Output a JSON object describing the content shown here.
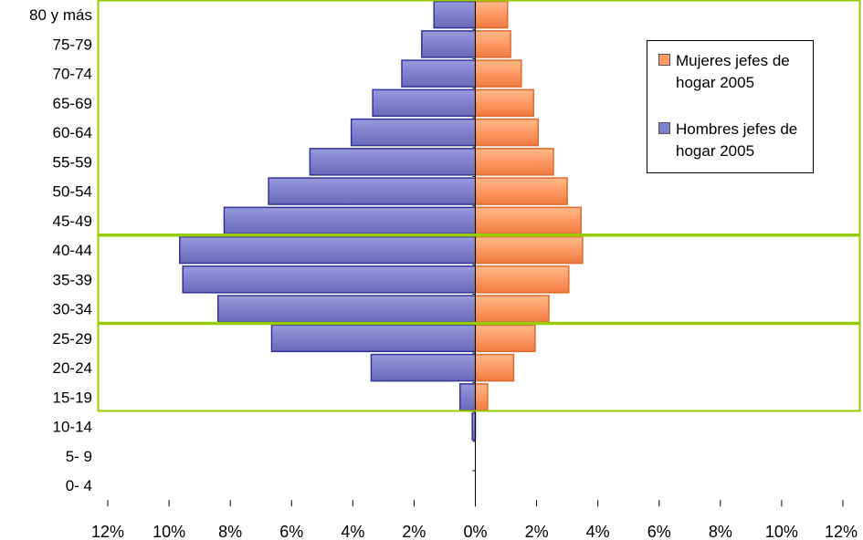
{
  "chart_data": {
    "type": "bar",
    "orientation": "horizontal",
    "categories": [
      "80 y más",
      "75-79",
      "70-74",
      "65-69",
      "60-64",
      "55-59",
      "50-54",
      "45-49",
      "40-44",
      "35-39",
      "30-34",
      "25-29",
      "20-24",
      "15-19",
      "10-14",
      "5- 9",
      "0- 4"
    ],
    "series": [
      {
        "name": "Mujeres jefes de hogar 2005",
        "color": "#ff9966",
        "values": [
          1.05,
          1.15,
          1.5,
          1.9,
          2.05,
          2.55,
          3.0,
          3.45,
          3.5,
          3.05,
          2.4,
          1.95,
          1.25,
          0.4,
          0.0,
          0.0,
          0.0
        ]
      },
      {
        "name": "Hombres jefes de hogar 2005",
        "color": "#8080cc",
        "values": [
          -1.35,
          -1.75,
          -2.4,
          -3.35,
          -4.05,
          -5.4,
          -6.75,
          -8.2,
          -9.65,
          -9.55,
          -8.4,
          -6.65,
          -3.4,
          -0.5,
          -0.1,
          0.0,
          0.0
        ]
      }
    ],
    "xlim": [
      -12,
      12
    ],
    "x_ticks": [
      -12,
      -10,
      -8,
      -6,
      -4,
      -2,
      0,
      2,
      4,
      6,
      8,
      10,
      12
    ],
    "x_tick_labels": [
      "12%",
      "10%",
      "8%",
      "6%",
      "4%",
      "2%",
      "0%",
      "2%",
      "4%",
      "6%",
      "8%",
      "10%",
      "12%"
    ],
    "grid": false,
    "legend_position": "top-right",
    "highlight_color": "#99cc00",
    "highlight_bands": [
      [
        "80 y más",
        "45-49"
      ],
      [
        "40-44",
        "30-34"
      ],
      [
        "25-29",
        "15-19"
      ]
    ]
  },
  "legend": {
    "mujeres": "Mujeres jefes de hogar 2005",
    "hombres": "Hombres jefes de hogar 2005"
  }
}
